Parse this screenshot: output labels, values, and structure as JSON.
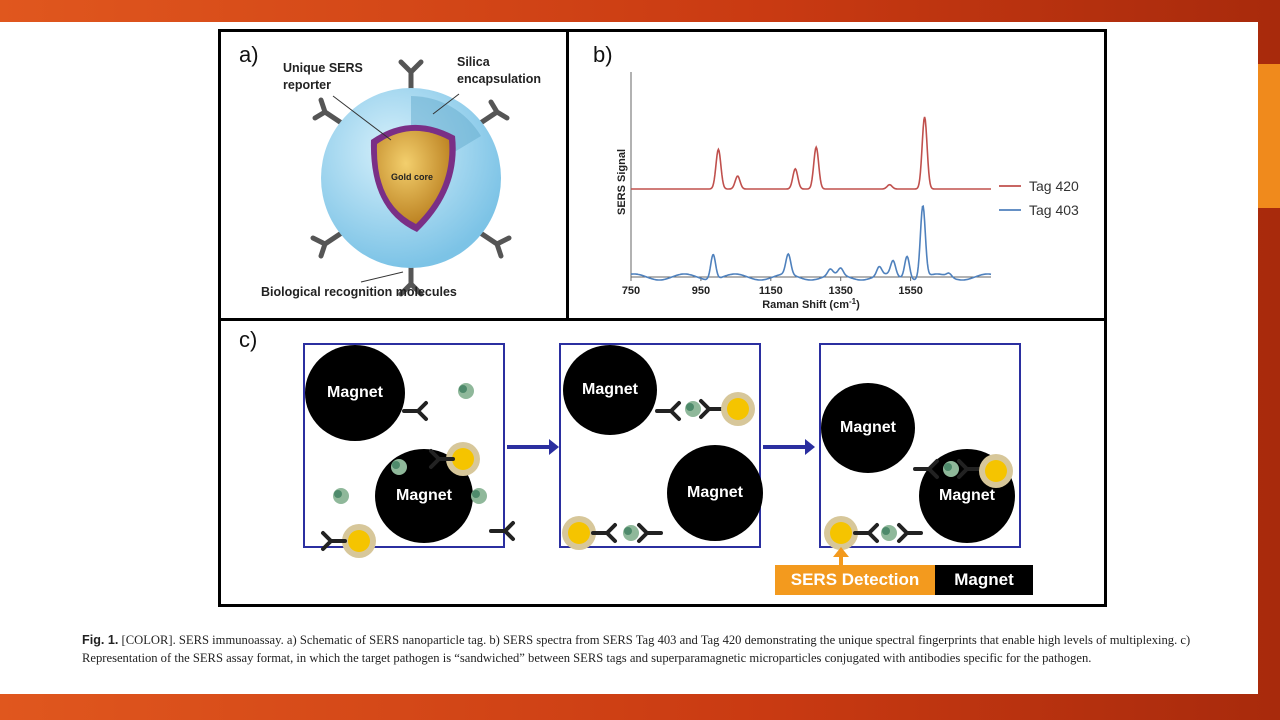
{
  "figure": {
    "panel_a": {
      "label": "a)",
      "reporter_label_line1": "Unique SERS",
      "reporter_label_line2": "reporter",
      "silica_label_line1": "Silica",
      "silica_label_line2": "encapsulation",
      "core_label": "Gold core",
      "recognition_label": "Biological recognition molecules",
      "colors": {
        "silica": "#9fd6ef",
        "gold": "#d9a63a",
        "reporter": "#7a2f86",
        "antibody": "#555555"
      }
    },
    "panel_b": {
      "label": "b)"
    },
    "panel_c": {
      "label": "c)",
      "magnet_label": "Magnet",
      "detection_label": "SERS Detection",
      "detection_magnet_label": "Magnet",
      "colors": {
        "box_border": "#2b2fa0",
        "detection": "#f39a1e",
        "tag": "#f5c400"
      }
    }
  },
  "chart_data": {
    "type": "line",
    "xlabel": "Raman Shift (cm",
    "xlabel_sup": "-1",
    "xlabel_end": ")",
    "ylabel": "SERS Signal",
    "xlim": [
      750,
      1780
    ],
    "xticks": [
      750,
      950,
      1150,
      1350,
      1550
    ],
    "legend_position": "right",
    "series": [
      {
        "name": "Tag 420",
        "color": "#c0504d",
        "peaks": [
          [
            1000,
            0.55
          ],
          [
            1055,
            0.18
          ],
          [
            1220,
            0.28
          ],
          [
            1280,
            0.58
          ],
          [
            1490,
            0.06
          ],
          [
            1590,
            1.0
          ]
        ]
      },
      {
        "name": "Tag 403",
        "color": "#4f81bd",
        "peaks": [
          [
            985,
            0.35
          ],
          [
            1200,
            0.28
          ],
          [
            1320,
            0.08
          ],
          [
            1350,
            0.09
          ],
          [
            1460,
            0.12
          ],
          [
            1500,
            0.2
          ],
          [
            1540,
            0.32
          ],
          [
            1585,
            1.0
          ],
          [
            1660,
            0.05
          ]
        ]
      }
    ]
  },
  "caption": {
    "lead": "Fig. 1.",
    "text": " [COLOR]. SERS immunoassay. a) Schematic of SERS nanoparticle tag. b) SERS spectra from SERS Tag 403 and Tag 420 demonstrating the unique spectral fingerprints that enable high levels of multiplexing. c) Representation of the SERS assay format, in which the target pathogen is “sandwiched” between SERS tags and superparamagnetic microparticles conjugated with antibodies specific for the pathogen."
  }
}
